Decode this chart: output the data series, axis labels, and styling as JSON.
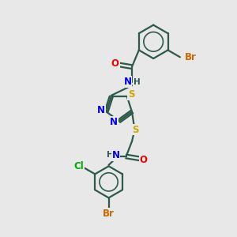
{
  "background_color": "#e8e8e8",
  "bond_color": "#2d5a4a",
  "bond_width": 1.6,
  "atom_colors": {
    "C": "#2d5a4a",
    "N": "#0000ee",
    "O": "#ee0000",
    "S": "#ccaa00",
    "Br": "#cc6600",
    "Cl": "#00aa00",
    "H": "#2d5a4a"
  },
  "font_size": 8.5,
  "fig_width": 3.0,
  "fig_height": 3.0,
  "xlim": [
    0,
    10
  ],
  "ylim": [
    0,
    10
  ]
}
